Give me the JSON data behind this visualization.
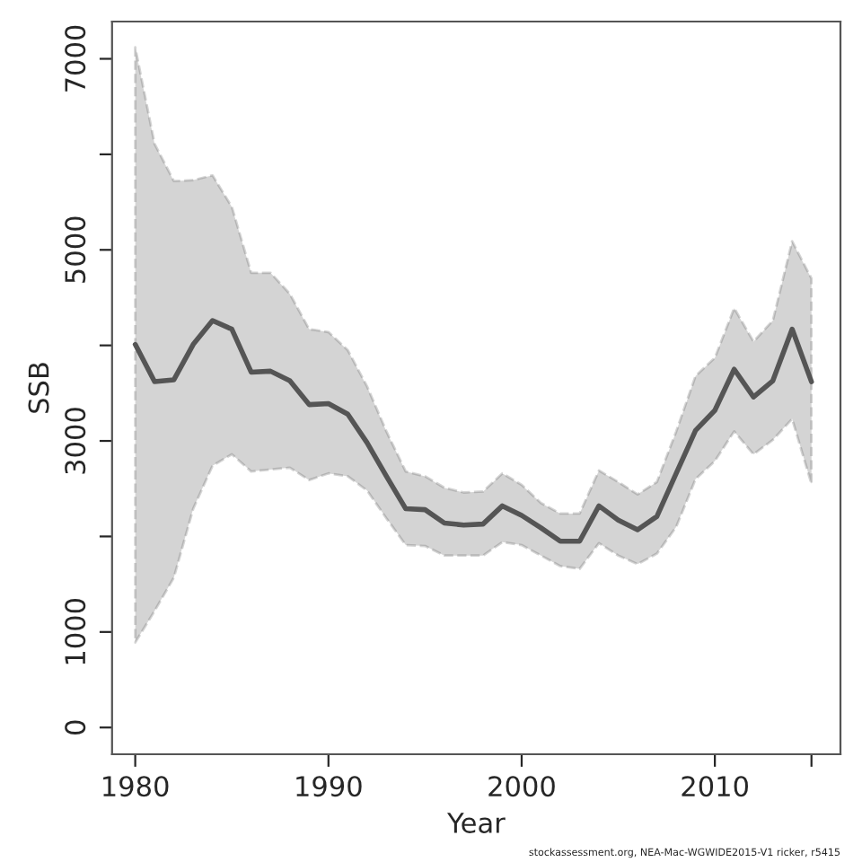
{
  "chart_data": {
    "type": "line",
    "xlabel": "Year",
    "ylabel": "SSB",
    "x": [
      1980,
      1981,
      1982,
      1983,
      1984,
      1985,
      1986,
      1987,
      1988,
      1989,
      1990,
      1991,
      1992,
      1993,
      1994,
      1995,
      1996,
      1997,
      1998,
      1999,
      2000,
      2001,
      2002,
      2003,
      2004,
      2005,
      2006,
      2007,
      2008,
      2009,
      2010,
      2011,
      2012,
      2013,
      2014,
      2015
    ],
    "series": [
      {
        "color": "#555555",
        "values": [
          4010,
          3620,
          3640,
          4010,
          4260,
          4170,
          3720,
          3730,
          3630,
          3380,
          3390,
          3280,
          2980,
          2630,
          2290,
          2280,
          2140,
          2120,
          2130,
          2320,
          2220,
          2090,
          1950,
          1950,
          2320,
          2170,
          2070,
          2210,
          2660,
          3110,
          3320,
          3750,
          3460,
          3630,
          4170,
          3620
        ],
        "upper": [
          7120,
          6110,
          5720,
          5730,
          5780,
          5450,
          4760,
          4760,
          4540,
          4170,
          4140,
          3950,
          3570,
          3100,
          2680,
          2630,
          2510,
          2460,
          2470,
          2660,
          2540,
          2350,
          2240,
          2240,
          2690,
          2570,
          2440,
          2570,
          3100,
          3680,
          3870,
          4390,
          4040,
          4260,
          5090,
          4700
        ],
        "lower": [
          890,
          1220,
          1570,
          2290,
          2740,
          2860,
          2680,
          2700,
          2720,
          2590,
          2660,
          2630,
          2480,
          2190,
          1910,
          1900,
          1800,
          1800,
          1800,
          1940,
          1910,
          1800,
          1690,
          1660,
          1930,
          1800,
          1710,
          1820,
          2100,
          2600,
          2790,
          3100,
          2860,
          3010,
          3230,
          2550
        ]
      }
    ],
    "xlim": [
      1978.8,
      2016.5
    ],
    "xticks": [
      1980,
      1990,
      2000,
      2010,
      {
        "value": 2015,
        "label": null
      }
    ],
    "ylim": [
      -280,
      7390
    ],
    "yticks": [
      0,
      1000,
      {
        "value": 2000,
        "label": null
      },
      3000,
      {
        "value": 4000,
        "label": null
      },
      5000,
      {
        "value": 6000,
        "label": null
      },
      7000
    ],
    "grid": false,
    "line_style": "solid",
    "marker": "none",
    "annotations": [
      "stockassessment.org, NEA-Mac-WGWIDE2015-V1 ricker, r5415"
    ]
  }
}
